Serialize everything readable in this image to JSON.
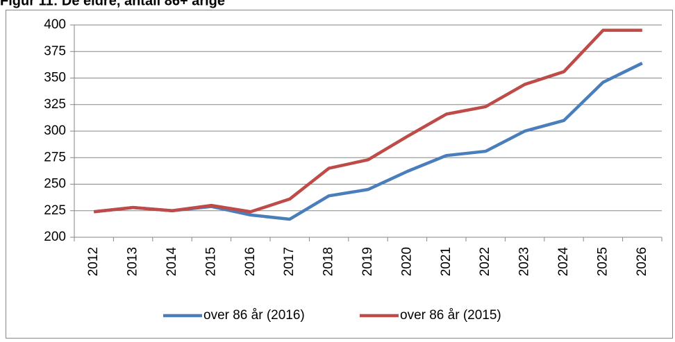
{
  "chart_data": {
    "type": "line",
    "title": "Figur 11: De eldre, antall 86+ årige",
    "categories": [
      "2012",
      "2013",
      "2014",
      "2015",
      "2016",
      "2017",
      "2018",
      "2019",
      "2020",
      "2021",
      "2022",
      "2023",
      "2024",
      "2025",
      "2026"
    ],
    "series": [
      {
        "name": "over 86 år (2016)",
        "color": "#4a7ebb",
        "values": [
          224,
          228,
          225,
          229,
          221,
          217,
          239,
          245,
          262,
          277,
          281,
          300,
          310,
          346,
          364
        ]
      },
      {
        "name": "over 86 år (2015)",
        "color": "#be4b48",
        "values": [
          224,
          228,
          225,
          230,
          224,
          236,
          265,
          273,
          295,
          316,
          323,
          344,
          356,
          395,
          395
        ]
      }
    ],
    "ylim": [
      200,
      400
    ],
    "yticks": [
      200,
      225,
      250,
      275,
      300,
      325,
      350,
      375,
      400
    ],
    "grid": true,
    "legend": "bottom"
  }
}
